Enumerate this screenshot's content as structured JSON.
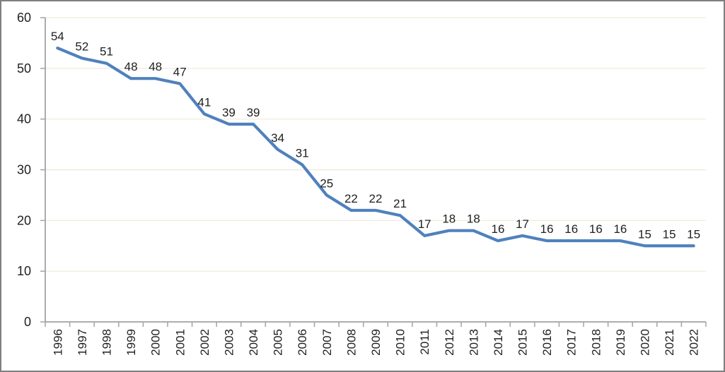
{
  "chart_data": {
    "type": "line",
    "title": "",
    "xlabel": "",
    "ylabel": "",
    "categories": [
      "1996",
      "1997",
      "1998",
      "1999",
      "2000",
      "2001",
      "2002",
      "2003",
      "2004",
      "2005",
      "2006",
      "2007",
      "2008",
      "2009",
      "2010",
      "2011",
      "2012",
      "2013",
      "2014",
      "2015",
      "2016",
      "2017",
      "2018",
      "2019",
      "2020",
      "2021",
      "2022"
    ],
    "values": [
      54,
      52,
      51,
      48,
      48,
      47,
      41,
      39,
      39,
      34,
      31,
      25,
      22,
      22,
      21,
      17,
      18,
      18,
      16,
      17,
      16,
      16,
      16,
      16,
      15,
      15,
      15
    ],
    "data_labels": [
      54,
      52,
      51,
      48,
      48,
      47,
      41,
      39,
      39,
      34,
      31,
      25,
      22,
      22,
      21,
      17,
      18,
      18,
      16,
      17,
      16,
      16,
      16,
      16,
      15,
      15,
      15
    ],
    "ylim": [
      0,
      60
    ],
    "y_ticks": [
      0,
      10,
      20,
      30,
      40,
      50,
      60
    ],
    "grid": true,
    "legend_position": "none",
    "colors": {
      "series_line": "#4f81bd",
      "gridline": "#efe9da",
      "axis": "#a3a3a3",
      "tick": "#a3a3a3",
      "data_label_text": "#1f1f1f",
      "axis_label_text": "#1f1f1f",
      "frame_border": "#7f7f7f",
      "background": "#ffffff"
    }
  }
}
